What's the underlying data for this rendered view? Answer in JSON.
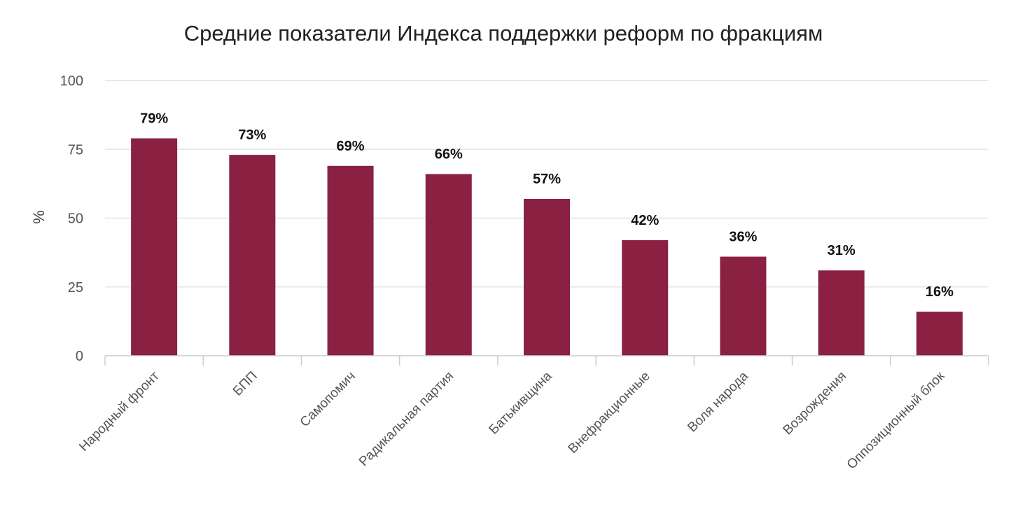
{
  "chart_data": {
    "type": "bar",
    "title": "Средние показатели Индекса поддержки реформ по фракциям",
    "xlabel": "",
    "ylabel": "%",
    "ylim": [
      0,
      100
    ],
    "yticks": [
      "0",
      "25",
      "50",
      "75",
      "100"
    ],
    "categories": [
      "Народный фронт",
      "БПП",
      "Самопомич",
      "Радикальная партия",
      "Батькивщина",
      "Внефракционные",
      "Воля народа",
      "Возрождения",
      "Оппозиционный блок"
    ],
    "values": [
      79,
      73,
      69,
      66,
      57,
      42,
      36,
      31,
      16
    ],
    "data_labels": [
      "79%",
      "73%",
      "69%",
      "66%",
      "57%",
      "42%",
      "36%",
      "31%",
      "16%"
    ],
    "grid": true,
    "legend": "none",
    "bar_color": "#8a2142",
    "grid_color": "#e2e4e8",
    "axis_color": "#c8ccd4"
  }
}
